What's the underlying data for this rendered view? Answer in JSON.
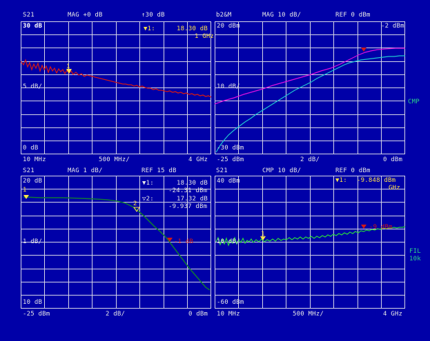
{
  "colors": {
    "background": "#0000a8",
    "grid": "#d8d8e8",
    "text": "#e8e8e8",
    "marker": "#ffe24a",
    "trace_red": "#d01818",
    "trace_magenta": "#e010e0",
    "trace_cyan": "#20c8d0",
    "trace_green": "#28d840",
    "trace_darkgreen": "#107838",
    "side_label": "#2bd58a"
  },
  "side_labels": {
    "cmp": "CMP",
    "fil": "FIL",
    "fil_bw": "10k"
  },
  "panels": [
    {
      "id": "tl",
      "header": {
        "param": "S21",
        "scale": "MAG +0 dB",
        "ref": "↑30 dB"
      },
      "top_ref": "30 dB",
      "mid_scale": "5 dB/",
      "bottom_ref": "0 dB",
      "x_start": "10 MHz",
      "x_span": "500 MHz/",
      "x_stop": "4 GHz",
      "markers": [
        {
          "name": "▼1:",
          "value": "18.30 dB",
          "value2": "1 GHz"
        }
      ],
      "marker_label": "1"
    },
    {
      "id": "tr",
      "header": {
        "param": "b2&M",
        "scale": "MAG 10 dB/",
        "ref": "REF 0 dBm"
      },
      "top_ref": "20 dBm",
      "top_right": "-2 dBm",
      "mid_scale": "10 dB/",
      "bottom_ref": "-30 dBm",
      "x_start": "-25 dBm",
      "x_span": "2 dB/",
      "x_stop": "0 dBm",
      "marker_readout": "-2 dBm"
    },
    {
      "id": "bl",
      "header": {
        "param": "S21",
        "scale": "MAG 1 dB/",
        "ref": "REF 15 dB"
      },
      "top_ref": "20 dB",
      "mid_scale": "1 dB/",
      "bottom_ref": "10 dB",
      "x_start": "-25 dBm",
      "x_span": "2 dB/",
      "x_stop": "0 dBm",
      "markers": [
        {
          "name": "▼1:",
          "value": "18.30 dB",
          "value2": "-24.31 dBm"
        },
        {
          "name": "▽2:",
          "value": "17.32 dB",
          "value2": "-9.937 dBm"
        }
      ],
      "marker_label": "1",
      "marker2_label": "2",
      "compression_label": "-1 dB"
    },
    {
      "id": "br",
      "header": {
        "param": "S21",
        "scale": "CMP 10 dB/",
        "ref": "REF 0 dBm"
      },
      "top_ref": "40 dBm",
      "mid_scale": "10 dB/",
      "bottom_ref": "-60 dBm",
      "x_start": "10 MHz",
      "x_span": "500 MHz/",
      "x_stop": "4 GHz",
      "markers": [
        {
          "name": "▼1:",
          "value": "-9.848 dBm",
          "value2": "GHz"
        }
      ],
      "marker_label": "1",
      "marker_readout": "-9 dBm"
    }
  ]
}
